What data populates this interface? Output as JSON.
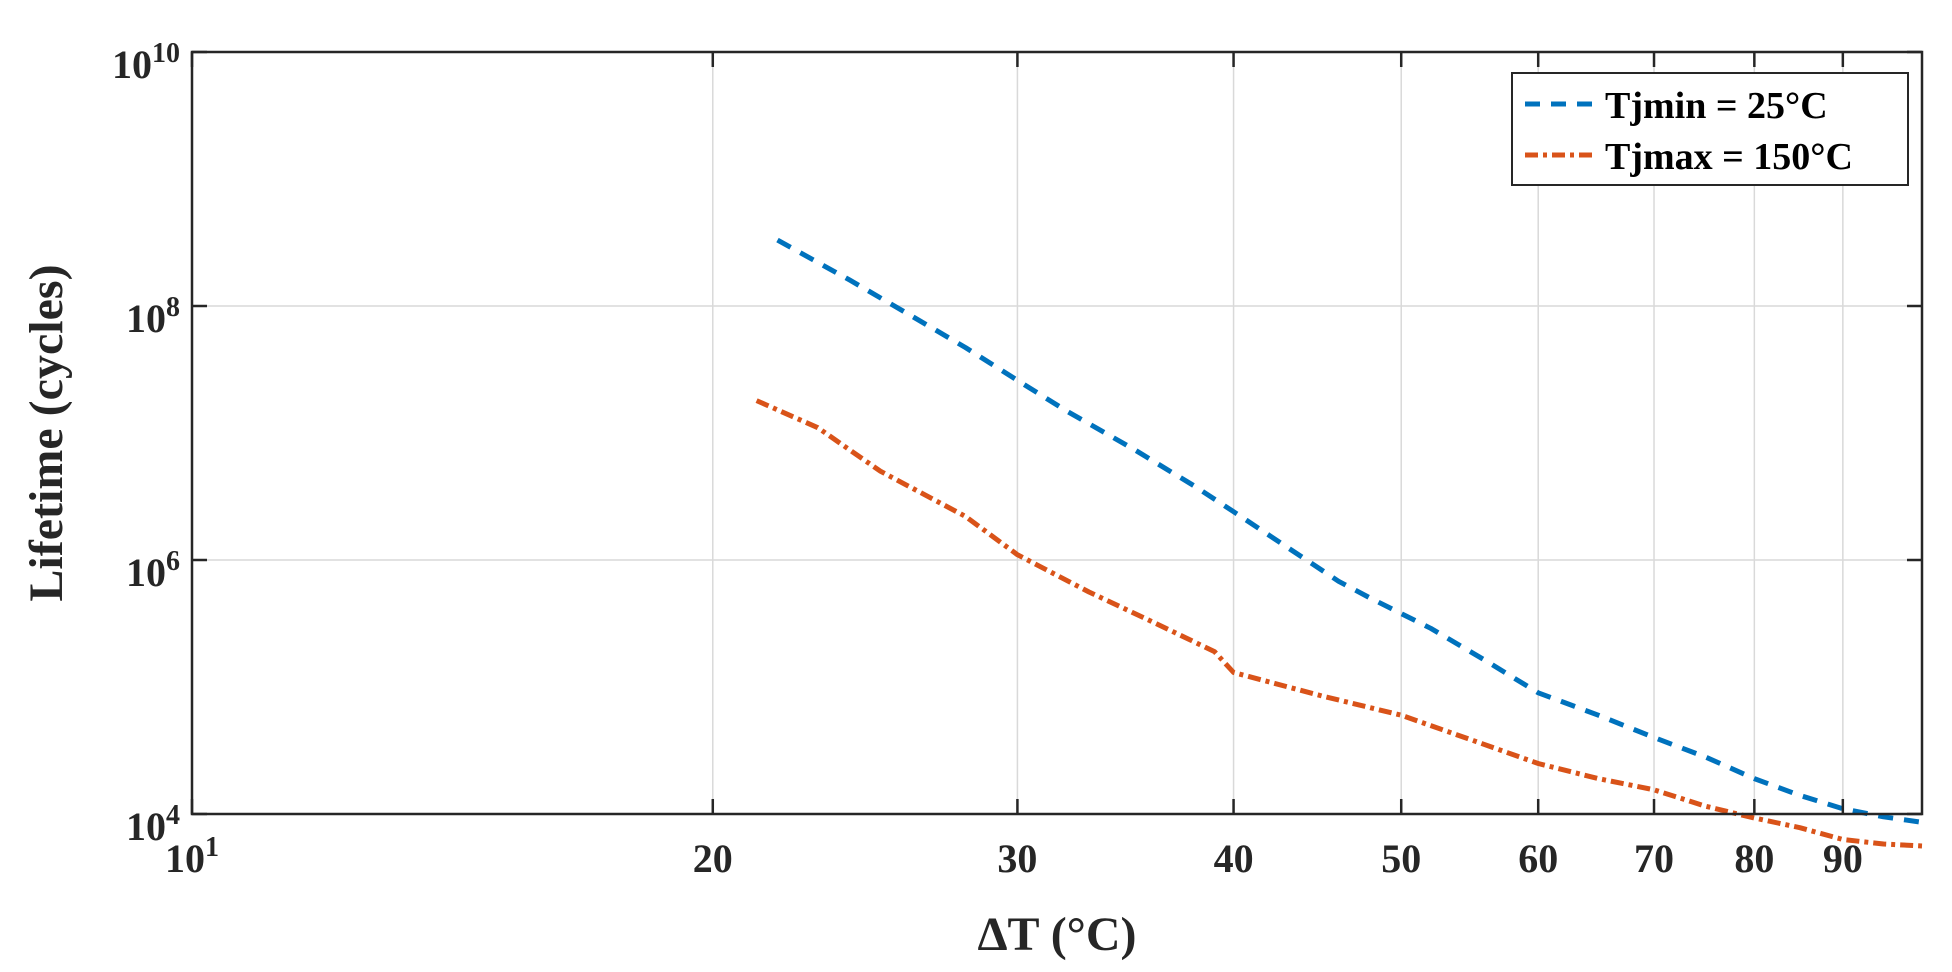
{
  "chart_data": {
    "type": "line",
    "xscale": "log",
    "yscale": "log",
    "xlim": [
      10,
      100
    ],
    "ylim": [
      10000,
      10000000000
    ],
    "grid": true,
    "legend_position": "top-right",
    "xlabel": "ΔT (°C)",
    "ylabel": "Lifetime (cycles)",
    "xticks": [
      {
        "value": 10,
        "base": "10",
        "exp": "1"
      },
      {
        "value": 20,
        "label": "20"
      },
      {
        "value": 30,
        "label": "30"
      },
      {
        "value": 40,
        "label": "40"
      },
      {
        "value": 50,
        "label": "50"
      },
      {
        "value": 60,
        "label": "60"
      },
      {
        "value": 70,
        "label": "70"
      },
      {
        "value": 80,
        "label": "80"
      },
      {
        "value": 90,
        "label": "90"
      }
    ],
    "yticks": [
      {
        "value": 10000,
        "base": "10",
        "exp": "4"
      },
      {
        "value": 1000000,
        "base": "10",
        "exp": "6"
      },
      {
        "value": 100000000,
        "base": "10",
        "exp": "8"
      },
      {
        "value": 10000000000,
        "base": "10",
        "exp": "10"
      }
    ],
    "series": [
      {
        "name": "Tjmin = 25°C",
        "color": "#0072BD",
        "dash": "dashed",
        "x": [
          21.8,
          24,
          26,
          28,
          30,
          32,
          35,
          38,
          40,
          43,
          46,
          48,
          52,
          56,
          60,
          65,
          70,
          75,
          80,
          85,
          90,
          95,
          100
        ],
        "y": [
          330000000,
          160000000,
          85000000,
          47000000,
          26000000,
          15000000,
          7500000,
          3800000,
          2400000,
          1250000,
          680000,
          500000,
          290000,
          160000,
          90000,
          60000,
          40000,
          28000,
          19000,
          14000,
          11000,
          9500,
          8600
        ]
      },
      {
        "name": "Tjmax = 150°C",
        "color": "#D95319",
        "dash": "dashdot",
        "x": [
          21.2,
          23,
          25,
          28,
          30,
          33,
          36,
          39,
          40,
          45,
          50,
          55,
          60,
          65,
          70,
          75,
          80,
          85,
          90,
          95,
          100
        ],
        "y": [
          18000000,
          11000000,
          5000000,
          2200000,
          1100000,
          560000,
          320000,
          190000,
          130000,
          85000,
          60000,
          38000,
          25000,
          19000,
          15500,
          11500,
          9300,
          7800,
          6300,
          5800,
          5600
        ]
      }
    ]
  }
}
